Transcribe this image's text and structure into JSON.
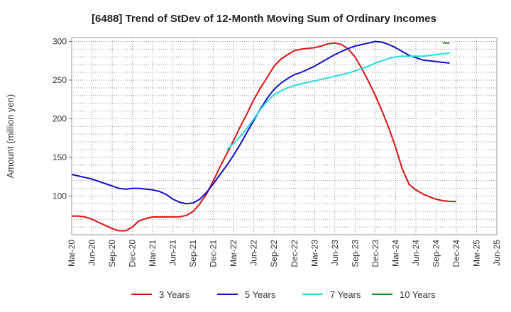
{
  "chart_data": {
    "type": "line",
    "title": "[6488]  Trend of StDev of 12-Month Moving Sum of Ordinary Incomes",
    "xlabel": "",
    "ylabel": "Amount (million yen)",
    "ylim": [
      50,
      305
    ],
    "yticks": [
      100,
      150,
      200,
      250,
      300
    ],
    "grid": true,
    "legend_position": "bottom",
    "categories": [
      "Mar-20",
      "Jun-20",
      "Sep-20",
      "Dec-20",
      "Mar-21",
      "Jun-21",
      "Sep-21",
      "Dec-21",
      "Mar-22",
      "Jun-22",
      "Sep-22",
      "Dec-22",
      "Mar-23",
      "Jun-23",
      "Sep-23",
      "Dec-23",
      "Mar-24",
      "Jun-24",
      "Sep-24",
      "Dec-24",
      "Mar-25",
      "Jun-25"
    ],
    "series": [
      {
        "name": "3 Years",
        "color": "#dd1111",
        "points": [
          [
            0,
            74
          ],
          [
            0.33,
            74
          ],
          [
            0.67,
            73
          ],
          [
            1,
            70
          ],
          [
            1.33,
            66
          ],
          [
            1.67,
            62
          ],
          [
            2,
            58
          ],
          [
            2.33,
            55
          ],
          [
            2.67,
            55
          ],
          [
            3,
            60
          ],
          [
            3.33,
            68
          ],
          [
            3.67,
            71
          ],
          [
            4,
            73
          ],
          [
            4.33,
            73
          ],
          [
            4.67,
            73
          ],
          [
            5,
            73
          ],
          [
            5.33,
            73
          ],
          [
            5.67,
            75
          ],
          [
            6,
            80
          ],
          [
            6.33,
            90
          ],
          [
            6.67,
            103
          ],
          [
            7,
            120
          ],
          [
            7.33,
            138
          ],
          [
            7.67,
            155
          ],
          [
            8,
            172
          ],
          [
            8.33,
            190
          ],
          [
            8.67,
            207
          ],
          [
            9,
            225
          ],
          [
            9.33,
            240
          ],
          [
            9.67,
            254
          ],
          [
            10,
            268
          ],
          [
            10.33,
            277
          ],
          [
            10.67,
            283
          ],
          [
            11,
            288
          ],
          [
            11.33,
            290
          ],
          [
            11.67,
            291
          ],
          [
            12,
            292
          ],
          [
            12.33,
            294
          ],
          [
            12.67,
            297
          ],
          [
            13,
            298
          ],
          [
            13.33,
            296
          ],
          [
            13.67,
            290
          ],
          [
            14,
            280
          ],
          [
            14.33,
            265
          ],
          [
            14.67,
            248
          ],
          [
            15,
            230
          ],
          [
            15.33,
            210
          ],
          [
            15.67,
            188
          ],
          [
            16,
            163
          ],
          [
            16.33,
            135
          ],
          [
            16.67,
            115
          ],
          [
            17,
            108
          ],
          [
            17.33,
            103
          ],
          [
            17.67,
            99
          ],
          [
            18,
            96
          ],
          [
            18.33,
            94
          ],
          [
            18.67,
            93
          ],
          [
            19,
            93
          ]
        ]
      },
      {
        "name": "5 Years",
        "color": "#1111cc",
        "points": [
          [
            0,
            128
          ],
          [
            0.33,
            126
          ],
          [
            0.67,
            124
          ],
          [
            1,
            122
          ],
          [
            1.33,
            119
          ],
          [
            1.67,
            116
          ],
          [
            2,
            113
          ],
          [
            2.33,
            110
          ],
          [
            2.67,
            109
          ],
          [
            3,
            110
          ],
          [
            3.33,
            110
          ],
          [
            3.67,
            109
          ],
          [
            4,
            108
          ],
          [
            4.33,
            106
          ],
          [
            4.67,
            102
          ],
          [
            5,
            96
          ],
          [
            5.33,
            92
          ],
          [
            5.67,
            90
          ],
          [
            6,
            91
          ],
          [
            6.33,
            96
          ],
          [
            6.67,
            105
          ],
          [
            7,
            116
          ],
          [
            7.33,
            128
          ],
          [
            7.67,
            140
          ],
          [
            8,
            153
          ],
          [
            8.33,
            167
          ],
          [
            8.67,
            183
          ],
          [
            9,
            198
          ],
          [
            9.33,
            213
          ],
          [
            9.67,
            227
          ],
          [
            10,
            238
          ],
          [
            10.33,
            246
          ],
          [
            10.67,
            252
          ],
          [
            11,
            257
          ],
          [
            11.33,
            260
          ],
          [
            11.67,
            264
          ],
          [
            12,
            268
          ],
          [
            12.33,
            273
          ],
          [
            12.67,
            278
          ],
          [
            13,
            283
          ],
          [
            13.33,
            287
          ],
          [
            13.67,
            291
          ],
          [
            14,
            294
          ],
          [
            14.33,
            296
          ],
          [
            14.67,
            298
          ],
          [
            15,
            300
          ],
          [
            15.33,
            299
          ],
          [
            15.67,
            296
          ],
          [
            16,
            292
          ],
          [
            16.33,
            287
          ],
          [
            16.67,
            282
          ],
          [
            17,
            279
          ],
          [
            17.33,
            276
          ],
          [
            17.67,
            275
          ],
          [
            18,
            274
          ],
          [
            18.33,
            273
          ],
          [
            18.67,
            272
          ]
        ]
      },
      {
        "name": "7 Years",
        "color": "#22dddd",
        "points": [
          [
            7.67,
            160
          ],
          [
            8,
            168
          ],
          [
            8.33,
            177
          ],
          [
            8.67,
            188
          ],
          [
            9,
            200
          ],
          [
            9.33,
            212
          ],
          [
            9.67,
            223
          ],
          [
            10,
            231
          ],
          [
            10.33,
            236
          ],
          [
            10.67,
            240
          ],
          [
            11,
            243
          ],
          [
            11.33,
            245
          ],
          [
            11.67,
            247
          ],
          [
            12,
            249
          ],
          [
            12.33,
            251
          ],
          [
            12.67,
            253
          ],
          [
            13,
            255
          ],
          [
            13.33,
            257
          ],
          [
            13.67,
            259
          ],
          [
            14,
            262
          ],
          [
            14.33,
            265
          ],
          [
            14.67,
            268
          ],
          [
            15,
            272
          ],
          [
            15.33,
            275
          ],
          [
            15.67,
            278
          ],
          [
            16,
            280
          ],
          [
            16.33,
            281
          ],
          [
            16.67,
            281
          ],
          [
            17,
            281
          ],
          [
            17.33,
            281
          ],
          [
            17.67,
            282
          ],
          [
            18,
            283
          ],
          [
            18.33,
            284
          ],
          [
            18.67,
            285
          ]
        ]
      },
      {
        "name": "10 Years",
        "color": "#228822",
        "points": [
          [
            18.33,
            298
          ],
          [
            18.67,
            298
          ]
        ]
      }
    ]
  }
}
